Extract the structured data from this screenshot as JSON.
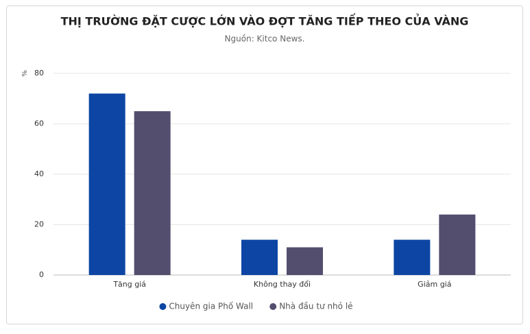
{
  "chart_data": {
    "type": "bar",
    "title": "THỊ TRƯỜNG ĐẶT CƯỢC LỚN VÀO ĐỢT TĂNG TIẾP THEO CỦA VÀNG",
    "subtitle": "Nguồn: Kitco News.",
    "y_label": "%",
    "categories": [
      "Tăng giá",
      "Không thay đổi",
      "Giảm giá"
    ],
    "series": [
      {
        "name": "Chuyên gia Phố Wall",
        "color": "#0c45a3",
        "values": [
          72,
          14,
          14
        ]
      },
      {
        "name": "Nhà đầu tư nhỏ lẻ",
        "color": "#534e6e",
        "values": [
          65,
          11,
          24
        ]
      }
    ],
    "ylim": [
      0,
      80
    ],
    "yticks": [
      0,
      20,
      40,
      60,
      80
    ],
    "grid": true
  }
}
